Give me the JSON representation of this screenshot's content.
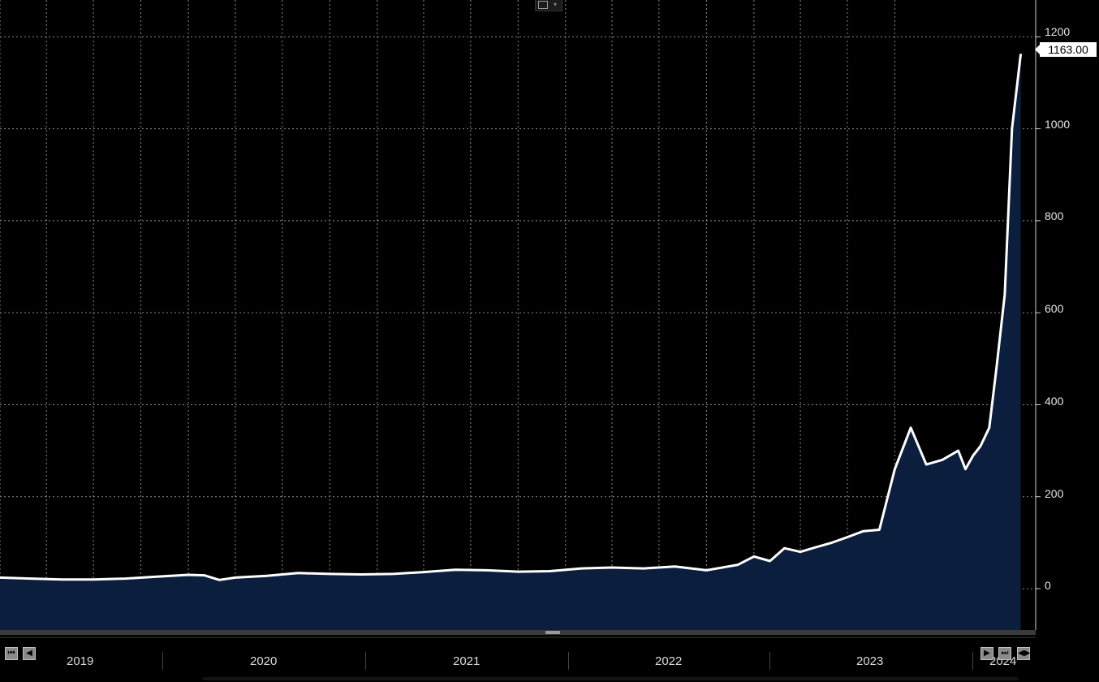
{
  "chart_data": {
    "type": "area",
    "x": [
      "2019-01",
      "2019-03",
      "2019-05",
      "2019-07",
      "2019-09",
      "2019-11",
      "2020-01",
      "2020-02",
      "2020-03",
      "2020-04",
      "2020-06",
      "2020-08",
      "2020-10",
      "2020-12",
      "2021-02",
      "2021-04",
      "2021-06",
      "2021-08",
      "2021-10",
      "2021-12",
      "2022-02",
      "2022-04",
      "2022-06",
      "2022-08",
      "2022-10",
      "2022-12",
      "2023-01",
      "2023-02",
      "2023-03",
      "2023-04",
      "2023-05",
      "2023-06",
      "2023-07",
      "2023-08",
      "2023-09",
      "2023-10",
      "2023-11",
      "2023-12",
      "2024-01",
      "2024-02",
      "2024-02",
      "2024-03",
      "2024-03",
      "2024-04",
      "2024-04",
      "2024-05",
      "2024-05",
      "2024-06"
    ],
    "values": [
      24,
      22,
      20,
      20,
      22,
      26,
      30,
      29,
      19,
      24,
      28,
      34,
      32,
      31,
      32,
      36,
      41,
      40,
      37,
      38,
      44,
      46,
      44,
      48,
      40,
      52,
      70,
      60,
      88,
      80,
      90,
      100,
      112,
      125,
      128,
      260,
      350,
      270,
      280,
      300,
      260,
      290,
      310,
      350,
      480,
      640,
      1000,
      1163
    ],
    "ylim": [
      -90,
      1280
    ],
    "yticks": [
      0,
      200,
      400,
      600,
      800,
      1000,
      1200
    ],
    "grid": true
  },
  "last_value_label": "1163.00",
  "y_tick_labels": [
    "1200",
    "1000",
    "800",
    "600",
    "400",
    "200",
    "0"
  ],
  "x_tick_labels": [
    "2019",
    "2020",
    "2021",
    "2022",
    "2023",
    "2024"
  ],
  "colors": {
    "line": "#ffffff",
    "fill": "#0b1e3d",
    "grid": "#8a8a8a",
    "background": "#000000"
  },
  "controls": {
    "nav_left_icons": [
      "skip-to-start-icon",
      "step-back-icon"
    ],
    "nav_right_icons": [
      "step-forward-icon",
      "skip-to-end-icon",
      "collapse-icon"
    ],
    "top_widget_icon": "line-chart-icon"
  }
}
